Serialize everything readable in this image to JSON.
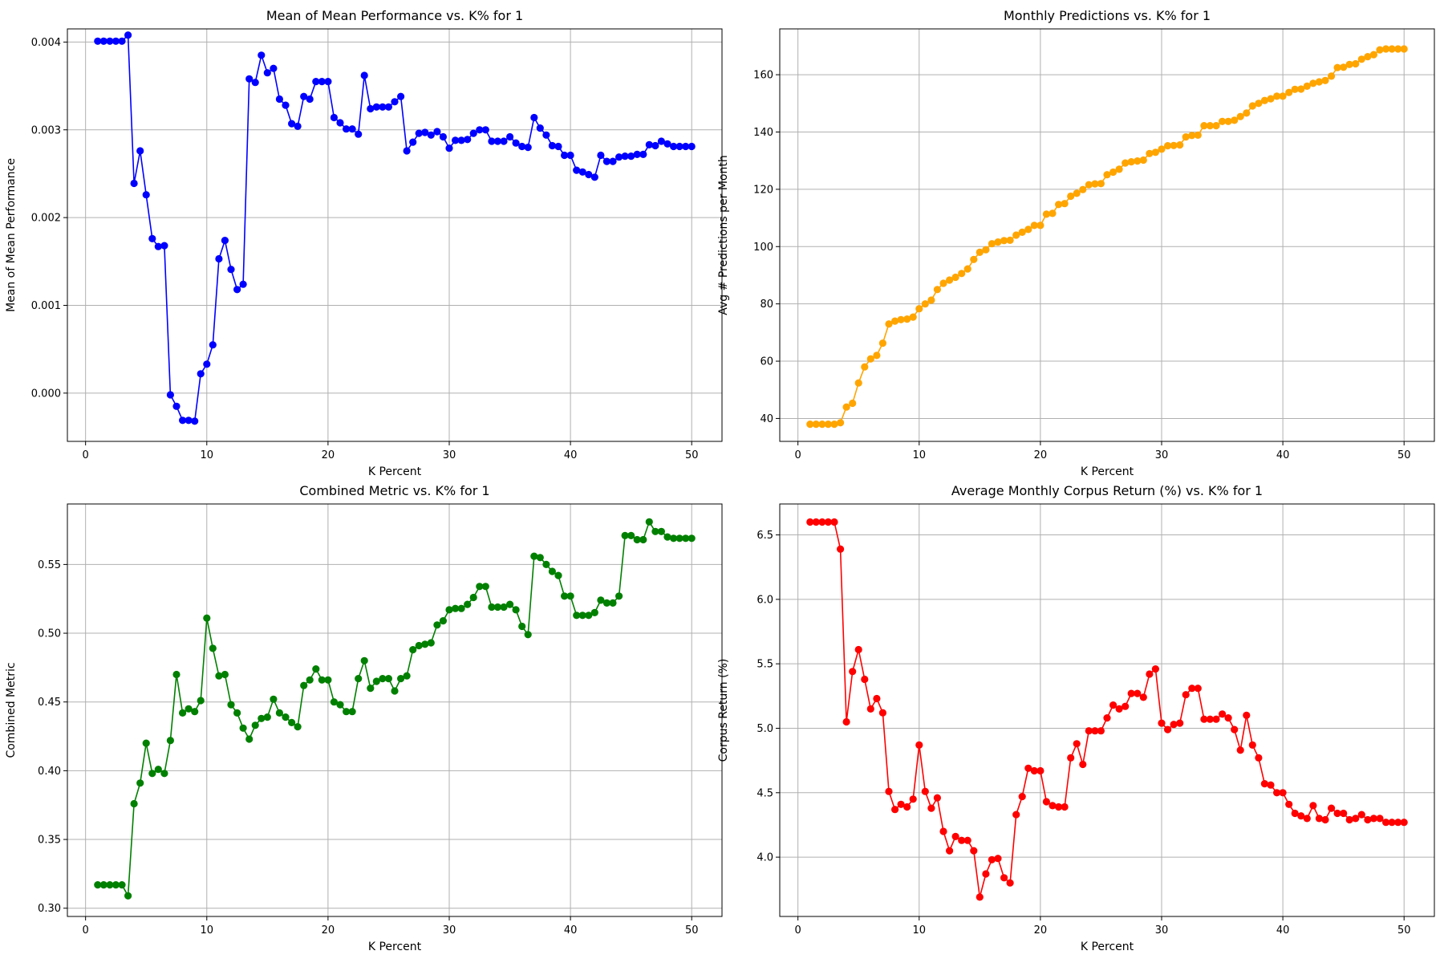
{
  "chart_data": [
    {
      "type": "line",
      "title": "Mean of Mean Performance vs. K% for 1",
      "xlabel": "K Percent",
      "ylabel": "Mean of Mean Performance",
      "xlim": [
        -1.5,
        52.5
      ],
      "ylim": [
        -0.00055,
        0.00415
      ],
      "xticks": [
        0,
        10,
        20,
        30,
        40,
        50
      ],
      "yticks": [
        0.0,
        0.001,
        0.002,
        0.003,
        0.004
      ],
      "ytick_labels": [
        "0.000",
        "0.001",
        "0.002",
        "0.003",
        "0.004"
      ],
      "grid": true,
      "color": "#0000ff",
      "x": [
        1,
        1.5,
        2,
        2.5,
        3,
        3.5,
        4,
        4.5,
        5,
        5.5,
        6,
        6.5,
        7,
        7.5,
        8,
        8.5,
        9,
        9.5,
        10,
        10.5,
        11,
        11.5,
        12,
        12.5,
        13,
        13.5,
        14,
        14.5,
        15,
        15.5,
        16,
        16.5,
        17,
        17.5,
        18,
        18.5,
        19,
        19.5,
        20,
        20.5,
        21,
        21.5,
        22,
        22.5,
        23,
        23.5,
        24,
        24.5,
        25,
        25.5,
        26,
        26.5,
        27,
        27.5,
        28,
        28.5,
        29,
        29.5,
        30,
        30.5,
        31,
        31.5,
        32,
        32.5,
        33,
        33.5,
        34,
        34.5,
        35,
        35.5,
        36,
        36.5,
        37,
        37.5,
        38,
        38.5,
        39,
        39.5,
        40,
        40.5,
        41,
        41.5,
        42,
        42.5,
        43,
        43.5,
        44,
        44.5,
        45,
        45.5,
        46,
        46.5,
        47,
        47.5,
        48,
        48.5,
        49,
        49.5,
        50
      ],
      "values": [
        0.00401,
        0.00401,
        0.00401,
        0.00401,
        0.00401,
        0.00408,
        0.00239,
        0.00276,
        0.00226,
        0.00176,
        0.00167,
        0.00168,
        -2e-05,
        -0.00015,
        -0.00031,
        -0.00031,
        -0.00032,
        0.00022,
        0.00033,
        0.00055,
        0.00153,
        0.00174,
        0.00141,
        0.00118,
        0.00124,
        0.00358,
        0.00354,
        0.00385,
        0.00365,
        0.0037,
        0.00335,
        0.00328,
        0.00307,
        0.00304,
        0.00338,
        0.00335,
        0.00355,
        0.00355,
        0.00355,
        0.00314,
        0.00308,
        0.00301,
        0.00301,
        0.00295,
        0.00362,
        0.00324,
        0.00326,
        0.00326,
        0.00326,
        0.00332,
        0.00338,
        0.00276,
        0.00286,
        0.00296,
        0.00297,
        0.00294,
        0.00298,
        0.00292,
        0.00279,
        0.00288,
        0.00288,
        0.00289,
        0.00296,
        0.003,
        0.003,
        0.00287,
        0.00287,
        0.00287,
        0.00292,
        0.00285,
        0.00281,
        0.0028,
        0.00314,
        0.00302,
        0.00294,
        0.00282,
        0.00281,
        0.00271,
        0.00271,
        0.00254,
        0.00252,
        0.00249,
        0.00246,
        0.00271,
        0.00264,
        0.00264,
        0.00269,
        0.0027,
        0.0027,
        0.00272,
        0.00272,
        0.00283,
        0.00282,
        0.00287,
        0.00284,
        0.00281,
        0.00281,
        0.00281,
        0.00281
      ]
    },
    {
      "type": "line",
      "title": "Monthly Predictions vs. K% for 1",
      "xlabel": "K Percent",
      "ylabel": "Avg # Predictions per Month",
      "xlim": [
        -1.5,
        52.5
      ],
      "ylim": [
        32,
        176
      ],
      "xticks": [
        0,
        10,
        20,
        30,
        40,
        50
      ],
      "yticks": [
        40,
        60,
        80,
        100,
        120,
        140,
        160
      ],
      "ytick_labels": [
        "40",
        "60",
        "80",
        "100",
        "120",
        "140",
        "160"
      ],
      "grid": true,
      "color": "#ffa500",
      "x": [
        1,
        1.5,
        2,
        2.5,
        3,
        3.5,
        4,
        4.5,
        5,
        5.5,
        6,
        6.5,
        7,
        7.5,
        8,
        8.5,
        9,
        9.5,
        10,
        10.5,
        11,
        11.5,
        12,
        12.5,
        13,
        13.5,
        14,
        14.5,
        15,
        15.5,
        16,
        16.5,
        17,
        17.5,
        18,
        18.5,
        19,
        19.5,
        20,
        20.5,
        21,
        21.5,
        22,
        22.5,
        23,
        23.5,
        24,
        24.5,
        25,
        25.5,
        26,
        26.5,
        27,
        27.5,
        28,
        28.5,
        29,
        29.5,
        30,
        30.5,
        31,
        31.5,
        32,
        32.5,
        33,
        33.5,
        34,
        34.5,
        35,
        35.5,
        36,
        36.5,
        37,
        37.5,
        38,
        38.5,
        39,
        39.5,
        40,
        40.5,
        41,
        41.5,
        42,
        42.5,
        43,
        43.5,
        44,
        44.5,
        45,
        45.5,
        46,
        46.5,
        47,
        47.5,
        48,
        48.5,
        49,
        49.5,
        50
      ],
      "values": [
        38.0,
        38.0,
        38.0,
        38.0,
        38.0,
        38.5,
        44.0,
        45.3,
        52.4,
        58.0,
        60.8,
        62.0,
        66.3,
        73.0,
        74.0,
        74.5,
        74.7,
        75.4,
        78.3,
        80.0,
        81.3,
        85.0,
        87.2,
        88.3,
        89.3,
        90.6,
        92.2,
        95.5,
        98.0,
        98.9,
        101.0,
        101.6,
        102.1,
        102.2,
        104.0,
        105.0,
        106.0,
        107.4,
        107.4,
        111.3,
        111.6,
        114.7,
        115.0,
        117.6,
        118.6,
        119.9,
        121.6,
        121.9,
        122.0,
        125.1,
        126.0,
        127.0,
        129.2,
        129.6,
        129.9,
        130.2,
        132.5,
        132.9,
        134.0,
        135.2,
        135.3,
        135.5,
        138.3,
        138.8,
        138.9,
        142.2,
        142.2,
        142.2,
        143.7,
        143.7,
        144.1,
        145.4,
        146.6,
        149.1,
        150.0,
        151.0,
        151.6,
        152.5,
        152.5,
        153.8,
        154.9,
        155.0,
        156.0,
        157.0,
        157.5,
        158.0,
        159.5,
        162.5,
        162.6,
        163.6,
        163.8,
        165.4,
        166.3,
        167.0,
        168.7,
        169.0,
        169.0,
        169.0,
        169.0
      ]
    },
    {
      "type": "line",
      "title": "Combined Metric vs. K% for 1",
      "xlabel": "K Percent",
      "ylabel": "Combined Metric",
      "xlim": [
        -1.5,
        52.5
      ],
      "ylim": [
        0.294,
        0.594
      ],
      "xticks": [
        0,
        10,
        20,
        30,
        40,
        50
      ],
      "yticks": [
        0.3,
        0.35,
        0.4,
        0.45,
        0.5,
        0.55
      ],
      "ytick_labels": [
        "0.30",
        "0.35",
        "0.40",
        "0.45",
        "0.50",
        "0.55"
      ],
      "grid": true,
      "color": "#008000",
      "x": [
        1,
        1.5,
        2,
        2.5,
        3,
        3.5,
        4,
        4.5,
        5,
        5.5,
        6,
        6.5,
        7,
        7.5,
        8,
        8.5,
        9,
        9.5,
        10,
        10.5,
        11,
        11.5,
        12,
        12.5,
        13,
        13.5,
        14,
        14.5,
        15,
        15.5,
        16,
        16.5,
        17,
        17.5,
        18,
        18.5,
        19,
        19.5,
        20,
        20.5,
        21,
        21.5,
        22,
        22.5,
        23,
        23.5,
        24,
        24.5,
        25,
        25.5,
        26,
        26.5,
        27,
        27.5,
        28,
        28.5,
        29,
        29.5,
        30,
        30.5,
        31,
        31.5,
        32,
        32.5,
        33,
        33.5,
        34,
        34.5,
        35,
        35.5,
        36,
        36.5,
        37,
        37.5,
        38,
        38.5,
        39,
        39.5,
        40,
        40.5,
        41,
        41.5,
        42,
        42.5,
        43,
        43.5,
        44,
        44.5,
        45,
        45.5,
        46,
        46.5,
        47,
        47.5,
        48,
        48.5,
        49,
        49.5,
        50
      ],
      "values": [
        0.317,
        0.317,
        0.317,
        0.317,
        0.317,
        0.309,
        0.376,
        0.391,
        0.42,
        0.398,
        0.401,
        0.398,
        0.422,
        0.47,
        0.442,
        0.445,
        0.443,
        0.451,
        0.511,
        0.489,
        0.469,
        0.47,
        0.448,
        0.442,
        0.431,
        0.423,
        0.433,
        0.438,
        0.439,
        0.452,
        0.442,
        0.439,
        0.435,
        0.432,
        0.462,
        0.466,
        0.474,
        0.466,
        0.466,
        0.45,
        0.448,
        0.443,
        0.443,
        0.467,
        0.48,
        0.46,
        0.465,
        0.467,
        0.467,
        0.458,
        0.467,
        0.469,
        0.488,
        0.491,
        0.492,
        0.493,
        0.506,
        0.509,
        0.517,
        0.518,
        0.518,
        0.521,
        0.526,
        0.534,
        0.534,
        0.519,
        0.519,
        0.519,
        0.521,
        0.517,
        0.505,
        0.499,
        0.556,
        0.555,
        0.55,
        0.545,
        0.542,
        0.527,
        0.527,
        0.513,
        0.513,
        0.513,
        0.515,
        0.524,
        0.522,
        0.522,
        0.527,
        0.571,
        0.571,
        0.568,
        0.568,
        0.581,
        0.574,
        0.574,
        0.57,
        0.569,
        0.569,
        0.569,
        0.569
      ]
    },
    {
      "type": "line",
      "title": "Average Monthly Corpus Return (%) vs. K%  for 1",
      "xlabel": "K Percent",
      "ylabel": "Corpus Return (%)",
      "xlim": [
        -1.5,
        52.5
      ],
      "ylim": [
        3.54,
        6.74
      ],
      "xticks": [
        0,
        10,
        20,
        30,
        40,
        50
      ],
      "yticks": [
        4.0,
        4.5,
        5.0,
        5.5,
        6.0,
        6.5
      ],
      "ytick_labels": [
        "4.0",
        "4.5",
        "5.0",
        "5.5",
        "6.0",
        "6.5"
      ],
      "grid": true,
      "color": "#ff0000",
      "x": [
        1,
        1.5,
        2,
        2.5,
        3,
        3.5,
        4,
        4.5,
        5,
        5.5,
        6,
        6.5,
        7,
        7.5,
        8,
        8.5,
        9,
        9.5,
        10,
        10.5,
        11,
        11.5,
        12,
        12.5,
        13,
        13.5,
        14,
        14.5,
        15,
        15.5,
        16,
        16.5,
        17,
        17.5,
        18,
        18.5,
        19,
        19.5,
        20,
        20.5,
        21,
        21.5,
        22,
        22.5,
        23,
        23.5,
        24,
        24.5,
        25,
        25.5,
        26,
        26.5,
        27,
        27.5,
        28,
        28.5,
        29,
        29.5,
        30,
        30.5,
        31,
        31.5,
        32,
        32.5,
        33,
        33.5,
        34,
        34.5,
        35,
        35.5,
        36,
        36.5,
        37,
        37.5,
        38,
        38.5,
        39,
        39.5,
        40,
        40.5,
        41,
        41.5,
        42,
        42.5,
        43,
        43.5,
        44,
        44.5,
        45,
        45.5,
        46,
        46.5,
        47,
        47.5,
        48,
        48.5,
        49,
        49.5,
        50
      ],
      "values": [
        6.6,
        6.6,
        6.6,
        6.6,
        6.6,
        6.39,
        5.05,
        5.44,
        5.61,
        5.38,
        5.15,
        5.23,
        5.12,
        4.51,
        4.37,
        4.41,
        4.39,
        4.45,
        4.87,
        4.51,
        4.38,
        4.46,
        4.2,
        4.05,
        4.16,
        4.13,
        4.13,
        4.05,
        3.69,
        3.87,
        3.98,
        3.99,
        3.84,
        3.8,
        4.33,
        4.47,
        4.69,
        4.67,
        4.67,
        4.43,
        4.4,
        4.39,
        4.39,
        4.77,
        4.88,
        4.72,
        4.98,
        4.98,
        4.98,
        5.08,
        5.18,
        5.15,
        5.17,
        5.27,
        5.27,
        5.24,
        5.42,
        5.46,
        5.04,
        4.99,
        5.03,
        5.04,
        5.26,
        5.31,
        5.31,
        5.07,
        5.07,
        5.07,
        5.11,
        5.08,
        4.99,
        4.83,
        5.1,
        4.87,
        4.77,
        4.57,
        4.56,
        4.5,
        4.5,
        4.41,
        4.34,
        4.32,
        4.3,
        4.4,
        4.3,
        4.29,
        4.38,
        4.34,
        4.34,
        4.29,
        4.3,
        4.33,
        4.29,
        4.3,
        4.3,
        4.27,
        4.27,
        4.27,
        4.27
      ]
    }
  ]
}
